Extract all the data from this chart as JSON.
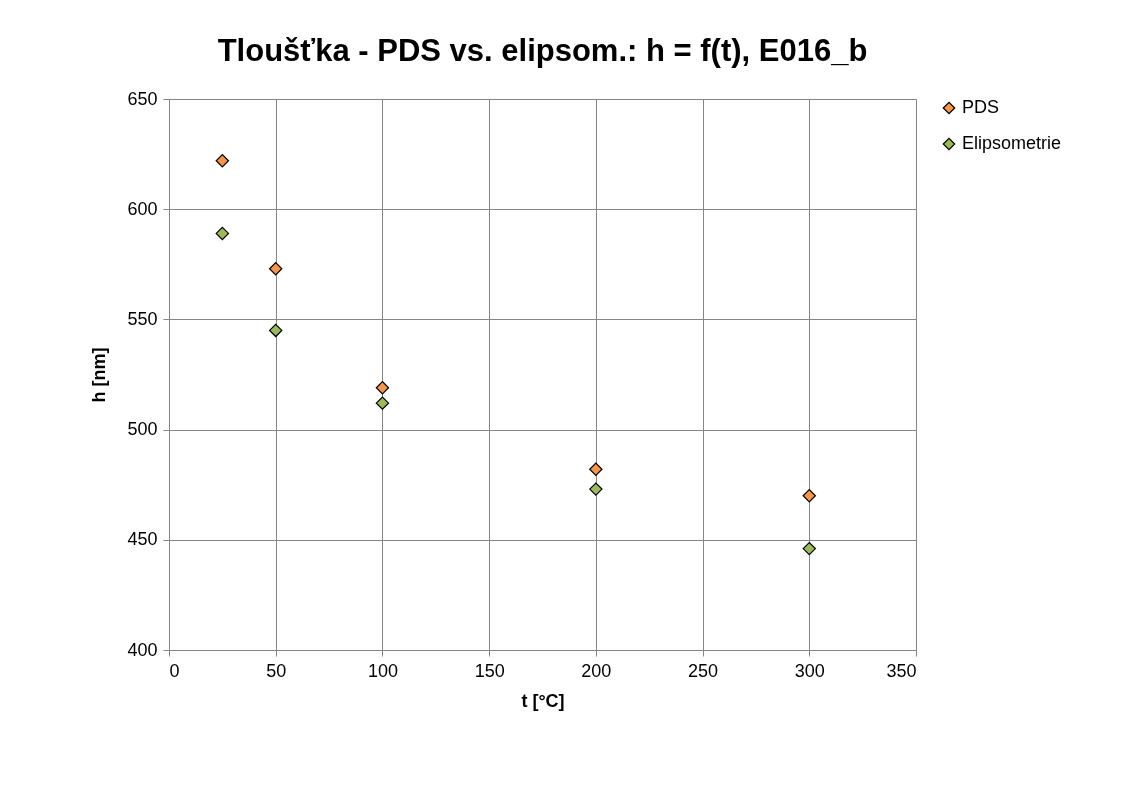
{
  "chart_data": {
    "type": "scatter",
    "title": "Tloušťka - PDS vs. elipsom.: h = f(t), E016_b",
    "xlabel": "t [°C]",
    "ylabel": "h [nm]",
    "x": [
      25,
      50,
      100,
      200,
      300
    ],
    "series": [
      {
        "name": "PDS",
        "color": "#f79646",
        "values": [
          622,
          573,
          519,
          482,
          470
        ]
      },
      {
        "name": "Elipsometrie",
        "color": "#9bbb59",
        "values": [
          589,
          545,
          512,
          473,
          446
        ]
      }
    ],
    "xlim": [
      0,
      350
    ],
    "xticks": [
      0,
      50,
      100,
      150,
      200,
      250,
      300,
      350
    ],
    "ylim": [
      400,
      650
    ],
    "yticks": [
      400,
      450,
      500,
      550,
      600,
      650
    ],
    "grid": true,
    "legend": "right",
    "marker": "diamond"
  }
}
